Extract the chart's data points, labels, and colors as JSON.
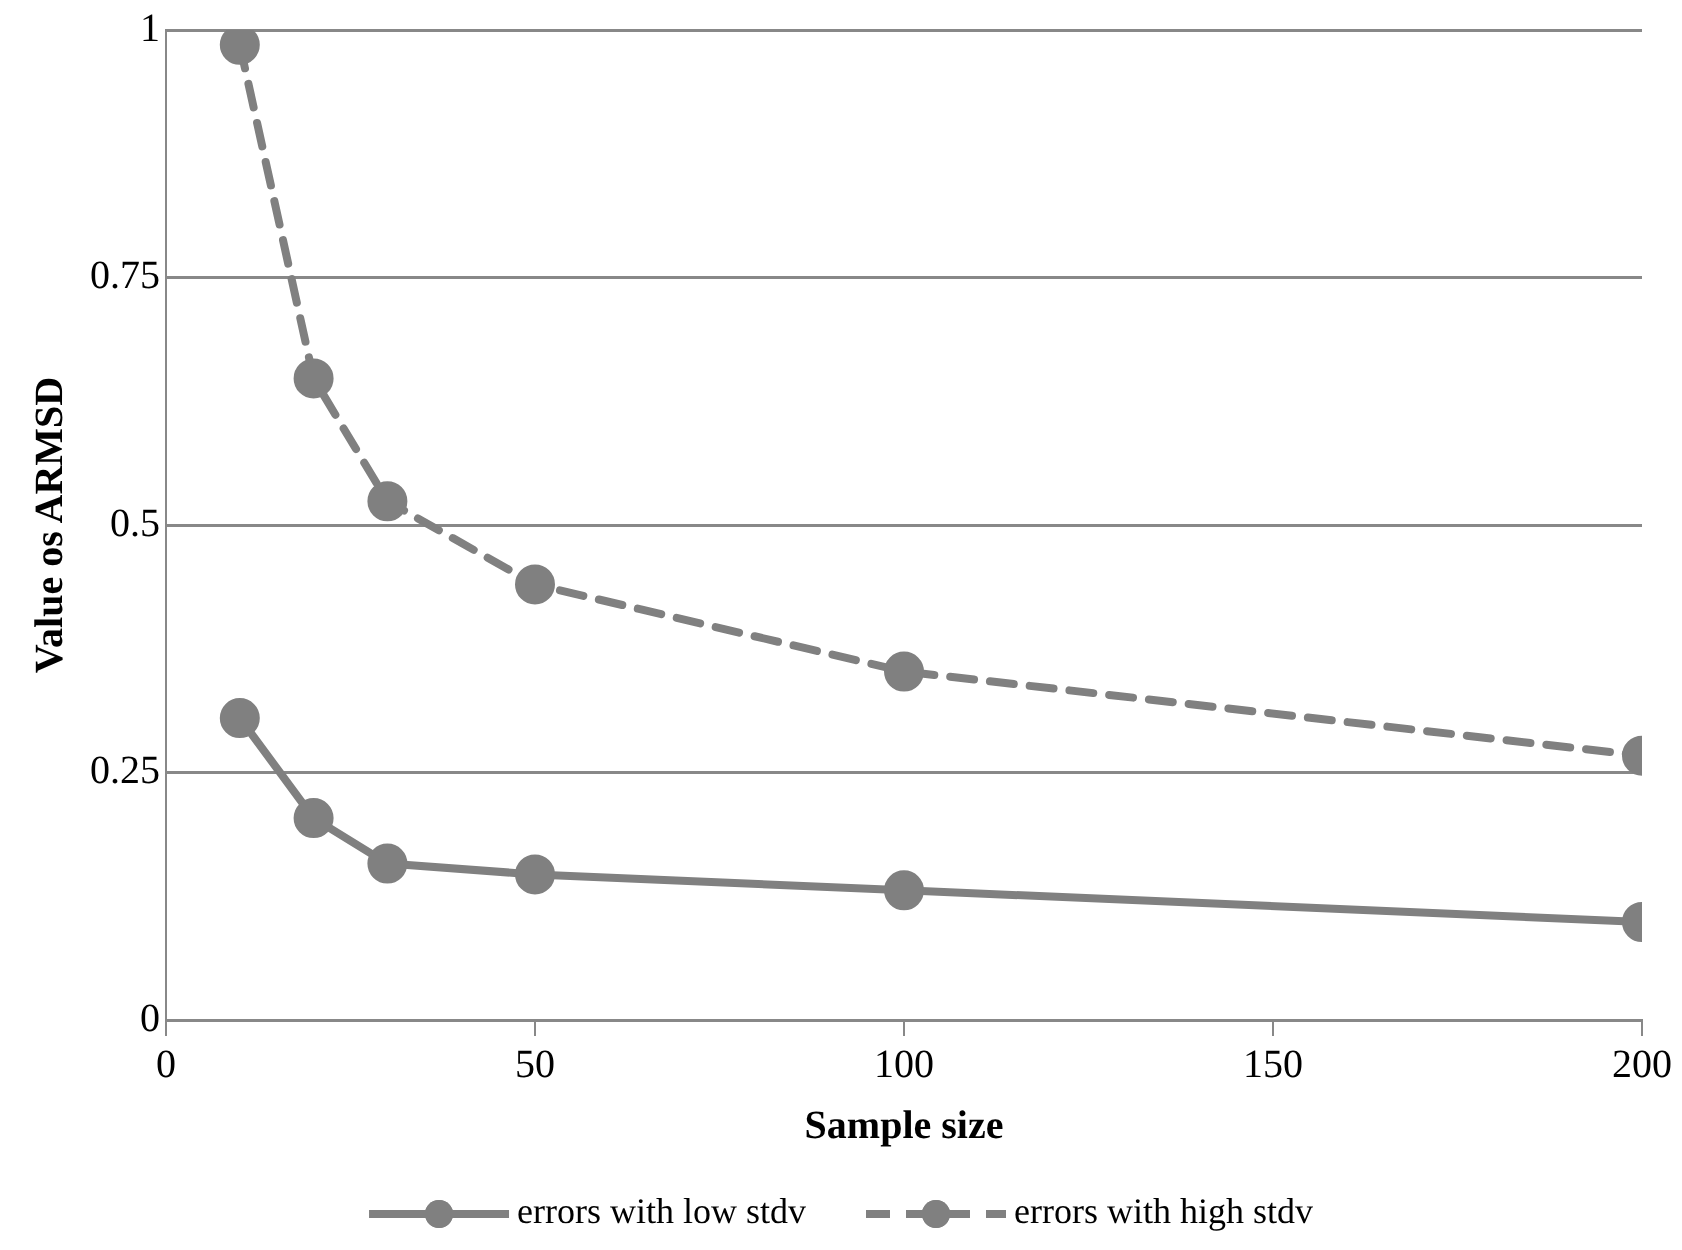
{
  "chart_data": {
    "type": "line",
    "xlabel": "Sample size",
    "ylabel": "Value os ARMSD",
    "x": [
      10,
      20,
      30,
      50,
      100,
      200
    ],
    "series": [
      {
        "name": "errors with low stdv",
        "color": "#808080",
        "line_style": "solid",
        "values": [
          0.305,
          0.204,
          0.158,
          0.147,
          0.131,
          0.099
        ]
      },
      {
        "name": "errors with high stdv",
        "color": "#808080",
        "line_style": "dashed",
        "values": [
          0.985,
          0.648,
          0.524,
          0.44,
          0.352,
          0.267
        ]
      }
    ],
    "xlim": [
      0,
      200
    ],
    "xticks": [
      0,
      50,
      100,
      150,
      200
    ],
    "ylim": [
      0,
      1
    ],
    "yticks": [
      0,
      0.25,
      0.5,
      0.75,
      1
    ],
    "grid": "y",
    "legend": "bottom",
    "marker": "circle"
  }
}
